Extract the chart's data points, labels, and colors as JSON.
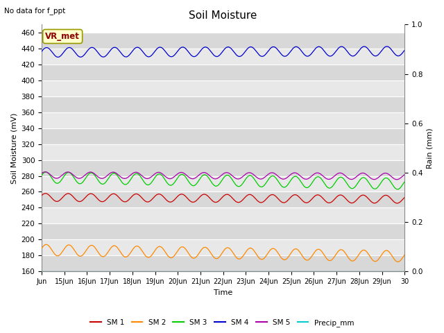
{
  "title": "Soil Moisture",
  "top_left_text": "No data for f_ppt",
  "annotation_text": "VR_met",
  "xlabel": "Time",
  "ylabel_left": "Soil Moisture (mV)",
  "ylabel_right": "Rain (mm)",
  "ylim_left": [
    160,
    470
  ],
  "ylim_right": [
    0.0,
    1.0
  ],
  "yticks_left": [
    160,
    180,
    200,
    220,
    240,
    260,
    280,
    300,
    320,
    340,
    360,
    380,
    400,
    420,
    440,
    460
  ],
  "yticks_right": [
    0.0,
    0.2,
    0.4,
    0.6,
    0.8,
    1.0
  ],
  "xtick_labels": [
    "Jun",
    "15Jun",
    "16Jun",
    "17Jun",
    "18Jun",
    "19Jun",
    "20Jun",
    "21Jun",
    "22Jun",
    "23Jun",
    "24Jun",
    "25Jun",
    "26Jun",
    "27Jun",
    "28Jun",
    "29Jun",
    "30"
  ],
  "band_colors": [
    "#d8d8d8",
    "#e8e8e8"
  ],
  "figure_facecolor": "#ffffff",
  "series": {
    "SM1": {
      "color": "#cc0000",
      "base": 253,
      "amplitude": 5,
      "trend": -0.15
    },
    "SM2": {
      "color": "#ff8800",
      "base": 187,
      "amplitude": 7,
      "trend": -0.5
    },
    "SM3": {
      "color": "#00cc00",
      "base": 278,
      "amplitude": 7,
      "trend": -0.5
    },
    "SM4": {
      "color": "#0000cc",
      "base": 435,
      "amplitude": 6,
      "trend": 0.1
    },
    "SM5": {
      "color": "#aa00aa",
      "base": 281,
      "amplitude": 4,
      "trend": -0.1
    },
    "Precip": {
      "color": "#00cccc",
      "value": 160
    }
  },
  "legend_entries": [
    "SM 1",
    "SM 2",
    "SM 3",
    "SM 4",
    "SM 5",
    "Precip_mm"
  ],
  "legend_colors": [
    "#cc0000",
    "#ff8800",
    "#00cc00",
    "#0000cc",
    "#aa00aa",
    "#00cccc"
  ],
  "figsize": [
    6.4,
    4.8
  ],
  "dpi": 100
}
